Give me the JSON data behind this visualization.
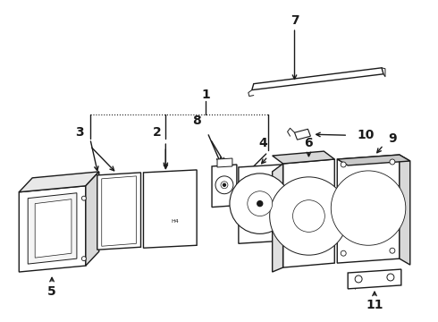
{
  "bg_color": "#ffffff",
  "line_color": "#1a1a1a",
  "figsize": [
    4.9,
    3.6
  ],
  "dpi": 100,
  "label_fontsize": 10,
  "label_fontsize_sm": 9
}
